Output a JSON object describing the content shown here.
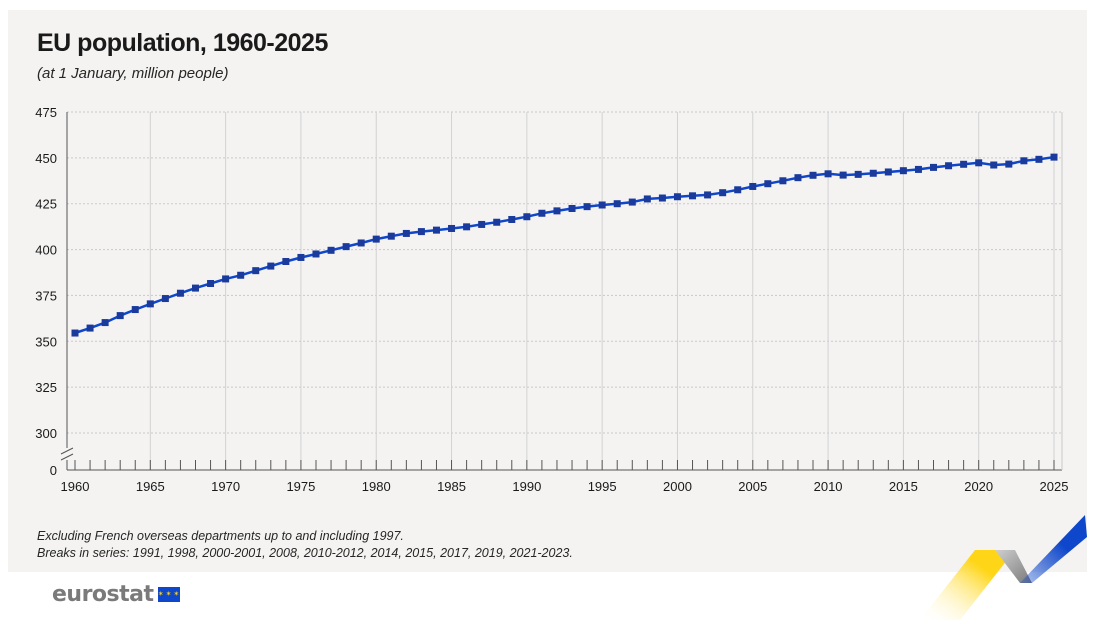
{
  "chart_data": {
    "type": "line",
    "title": "EU population, 1960-2025",
    "subtitle": "(at 1 January, million people)",
    "xlabel": "",
    "ylabel": "",
    "x": [
      1960,
      1961,
      1962,
      1963,
      1964,
      1965,
      1966,
      1967,
      1968,
      1969,
      1970,
      1971,
      1972,
      1973,
      1974,
      1975,
      1976,
      1977,
      1978,
      1979,
      1980,
      1981,
      1982,
      1983,
      1984,
      1985,
      1986,
      1987,
      1988,
      1989,
      1990,
      1991,
      1992,
      1993,
      1994,
      1995,
      1996,
      1997,
      1998,
      1999,
      2000,
      2001,
      2002,
      2003,
      2004,
      2005,
      2006,
      2007,
      2008,
      2009,
      2010,
      2011,
      2012,
      2013,
      2014,
      2015,
      2016,
      2017,
      2018,
      2019,
      2020,
      2021,
      2022,
      2023,
      2024,
      2025
    ],
    "series": [
      {
        "name": "",
        "values": [
          354.5,
          357.2,
          360.2,
          364.0,
          367.3,
          370.4,
          373.3,
          376.2,
          379.0,
          381.5,
          384.0,
          386.0,
          388.5,
          391.0,
          393.5,
          395.7,
          397.6,
          399.6,
          401.6,
          403.6,
          405.7,
          407.3,
          408.8,
          409.8,
          410.6,
          411.5,
          412.4,
          413.7,
          414.9,
          416.4,
          417.9,
          419.8,
          421.1,
          422.4,
          423.4,
          424.3,
          425.0,
          425.9,
          427.6,
          428.1,
          428.8,
          429.3,
          429.8,
          431.0,
          432.6,
          434.4,
          435.9,
          437.5,
          439.2,
          440.5,
          441.3,
          440.6,
          441.0,
          441.6,
          442.3,
          443.0,
          443.7,
          444.8,
          445.7,
          446.5,
          447.3,
          446.1,
          446.6,
          448.4,
          449.2,
          450.4
        ]
      }
    ],
    "xticks": [
      "1960",
      "1965",
      "1970",
      "1975",
      "1980",
      "1985",
      "1990",
      "1995",
      "2000",
      "2005",
      "2010",
      "2015",
      "2020",
      "2025"
    ],
    "yticks": [
      "0",
      "300",
      "325",
      "350",
      "375",
      "400",
      "425",
      "450",
      "475"
    ],
    "ylim": [
      300,
      475
    ],
    "axis_break": true,
    "grid": true,
    "line_color": "#0e47cb",
    "marker_color": "#1a3a9c",
    "notes": [
      "Excluding French overseas departments up to and including 1997.",
      "Breaks in series: 1991, 1998, 2000-2001, 2008, 2010-2012, 2014, 2015, 2017, 2019, 2021-2023."
    ]
  },
  "branding": {
    "logo_text": "eurostat",
    "flag_color": "#0e47cb",
    "accent_blue": "#0e47cb",
    "accent_yellow": "#ffd617"
  }
}
